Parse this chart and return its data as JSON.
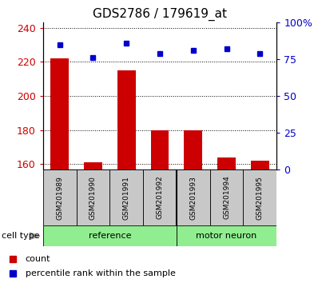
{
  "title": "GDS2786 / 179619_at",
  "categories": [
    "GSM201989",
    "GSM201990",
    "GSM201991",
    "GSM201992",
    "GSM201993",
    "GSM201994",
    "GSM201995"
  ],
  "red_values": [
    222,
    161,
    215,
    180,
    180,
    164,
    162
  ],
  "blue_values": [
    85,
    76,
    86,
    79,
    81,
    82,
    79
  ],
  "ylim_left": [
    157,
    243
  ],
  "ylim_right": [
    0,
    100
  ],
  "yticks_left": [
    160,
    180,
    200,
    220,
    240
  ],
  "yticks_right": [
    0,
    25,
    50,
    75,
    100
  ],
  "n_ref": 4,
  "n_motor": 3,
  "bar_color": "#cc0000",
  "dot_color": "#0000cc",
  "tick_color_left": "#cc0000",
  "tick_color_right": "#0000cc",
  "gray_box_color": "#c8c8c8",
  "ref_color": "#90ee90",
  "motor_color": "#90ee90",
  "legend_count_label": "count",
  "legend_pct_label": "percentile rank within the sample",
  "cell_type_label": "cell type",
  "ref_label": "reference",
  "motor_label": "motor neuron"
}
